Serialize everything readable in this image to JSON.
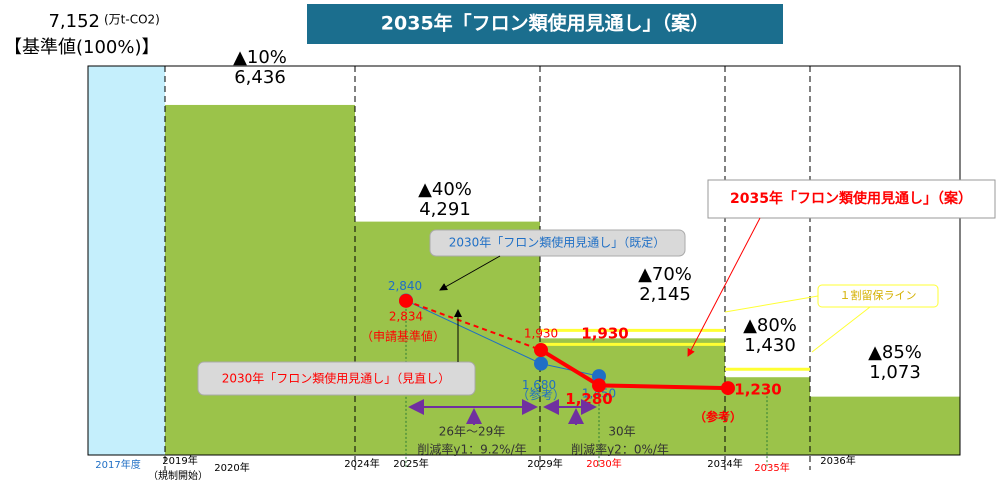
{
  "chart_data": {
    "type": "bar",
    "title": "2035年「フロン類使用見通し」（案）",
    "unit": "(万t-CO2)",
    "baseline_label": "【基準値(100%)】",
    "values": [
      7152,
      6436,
      4291,
      2145,
      1430,
      1073
    ],
    "value_labels": [
      "7,152",
      "6,436",
      "4,291",
      "2,145",
      "1,430",
      "1,073"
    ],
    "reduction_labels": [
      null,
      "▲10%",
      "▲40%",
      "▲70%",
      "▲80%",
      "▲85%"
    ],
    "colors": [
      "#c5effc",
      "#9bc34a",
      "#9bc34a",
      "#9bc34a",
      "#9bc34a",
      "#9bc34a"
    ],
    "x_labels": [
      "2017年度",
      "2019年",
      "（規制開始）",
      "2020年",
      "2024年",
      "2025年",
      "2029年",
      "2030年",
      "2034年",
      "2035年",
      "2036年"
    ],
    "series": [
      {
        "name": "2030年「フロン類使用見通し」（既定）",
        "color": "#1f6fc5",
        "values": [
          2840,
          1680,
          1450
        ],
        "value_labels": [
          "2,840",
          "1,680",
          "1,450"
        ]
      },
      {
        "name": "2030年「フロン類使用見通し」（見直し）",
        "color": "#ff0000",
        "values": [
          2834,
          1930
        ],
        "value_labels": [
          "2,834",
          "1,930"
        ]
      },
      {
        "name": "2035年「フロン類使用見通し」（案）",
        "color": "#ff0000",
        "values": [
          1930,
          1280,
          1230
        ],
        "value_labels": [
          "1,930",
          "1,280",
          "1,230"
        ]
      }
    ],
    "annotations": {
      "base_value": "（申請基準値）",
      "ref_blue": "（参考）",
      "ref_red": "（参考）",
      "reserve_line": "１割留保ライン",
      "period1": "26年～29年",
      "rate1": "削減率y1：9.2%/年",
      "period2": "30年",
      "rate2": "削減率y2：0%/年"
    }
  }
}
